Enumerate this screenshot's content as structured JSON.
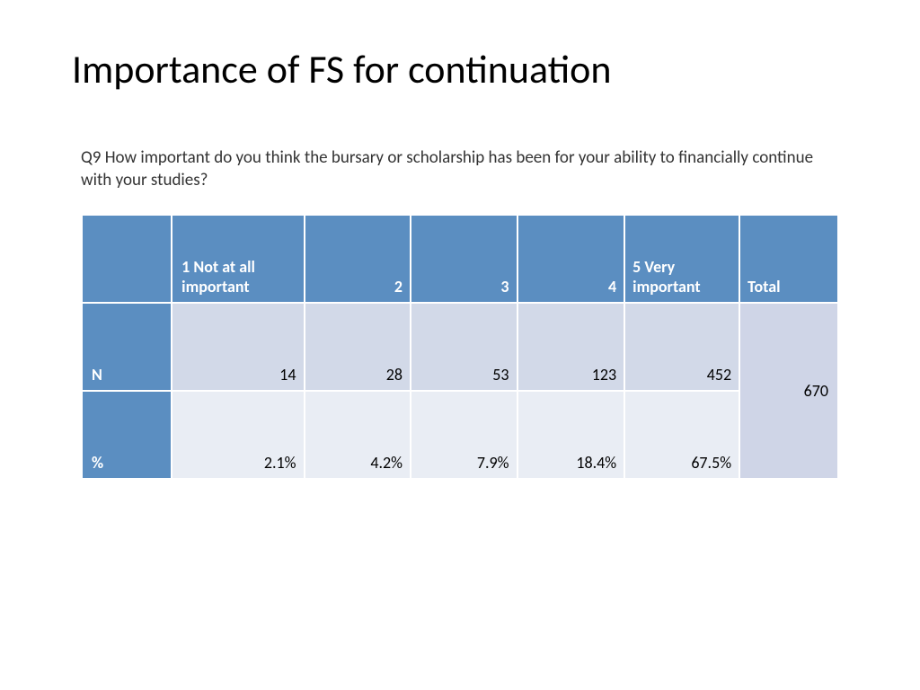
{
  "slide": {
    "title": "Importance of FS for continuation",
    "question": "Q9 How important do you think the bursary or scholarship has been for your ability to financially continue with your studies?"
  },
  "table": {
    "type": "table",
    "header_bg": "#5b8ec1",
    "header_text_color": "#ffffff",
    "row_n_bg": "#d2d9e8",
    "row_p_bg": "#e9edf4",
    "total_bg": "#cfd5e7",
    "border_color": "#ffffff",
    "font_size_pt": 14,
    "columns": {
      "c1": "1 Not at all important",
      "c2": "2",
      "c3": "3",
      "c4": "4",
      "c5": "5 Very important",
      "total": "Total"
    },
    "rows": {
      "n": {
        "label": "N",
        "c1": "14",
        "c2": "28",
        "c3": "53",
        "c4": "123",
        "c5": "452"
      },
      "p": {
        "label": "%",
        "c1": "2.1%",
        "c2": "4.2%",
        "c3": "7.9%",
        "c4": "18.4%",
        "c5": "67.5%"
      }
    },
    "total_value": "670"
  }
}
